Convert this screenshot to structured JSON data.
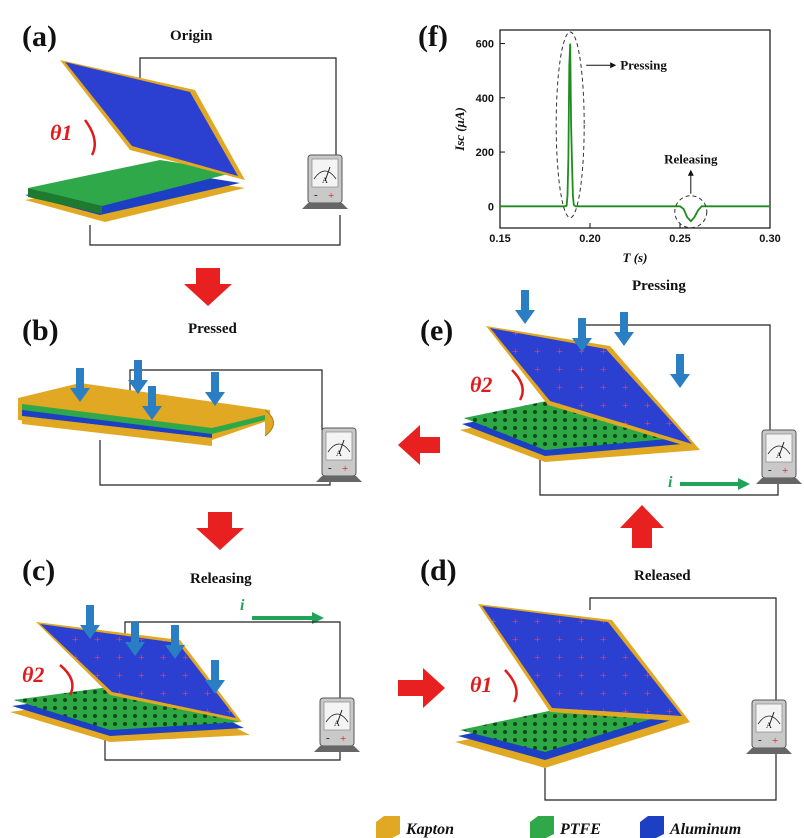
{
  "panels": {
    "a": {
      "label": "(a)",
      "title": "Origin",
      "angle": "θ1"
    },
    "b": {
      "label": "(b)",
      "title": "Pressed"
    },
    "c": {
      "label": "(c)",
      "title": "Releasing",
      "angle": "θ2",
      "current": "i"
    },
    "d": {
      "label": "(d)",
      "title": "Released",
      "angle": "θ1"
    },
    "e": {
      "label": "(e)",
      "title": "Pressing",
      "angle": "θ2",
      "current": "i"
    },
    "f": {
      "label": "(f)"
    }
  },
  "chart_data": {
    "type": "line",
    "xlabel": "T (s)",
    "ylabel": "Isc (μA)",
    "xlim": [
      0.15,
      0.3
    ],
    "ylim": [
      -80,
      650
    ],
    "xticks": [
      "0.15",
      "0.20",
      "0.25",
      "0.30"
    ],
    "yticks": [
      "0",
      "200",
      "400",
      "600"
    ],
    "annotations": [
      "Pressing",
      "Releasing"
    ],
    "series": [
      {
        "color": "#1e8c1e",
        "x": [
          0.15,
          0.186,
          0.187,
          0.1875,
          0.188,
          0.1885,
          0.189,
          0.1895,
          0.19,
          0.1905,
          0.191,
          0.192,
          0.2,
          0.25,
          0.252,
          0.254,
          0.256,
          0.258,
          0.26,
          0.262,
          0.3
        ],
        "y": [
          0,
          0,
          2,
          40,
          180,
          520,
          600,
          300,
          160,
          40,
          5,
          0,
          0,
          0,
          -10,
          -40,
          -55,
          -40,
          -15,
          0,
          0
        ]
      }
    ]
  },
  "legend": [
    {
      "label": "Kapton",
      "color": "#e0a823"
    },
    {
      "label": "PTFE",
      "color": "#2fa84a"
    },
    {
      "label": "Aluminum",
      "color": "#1d3fc4"
    }
  ]
}
